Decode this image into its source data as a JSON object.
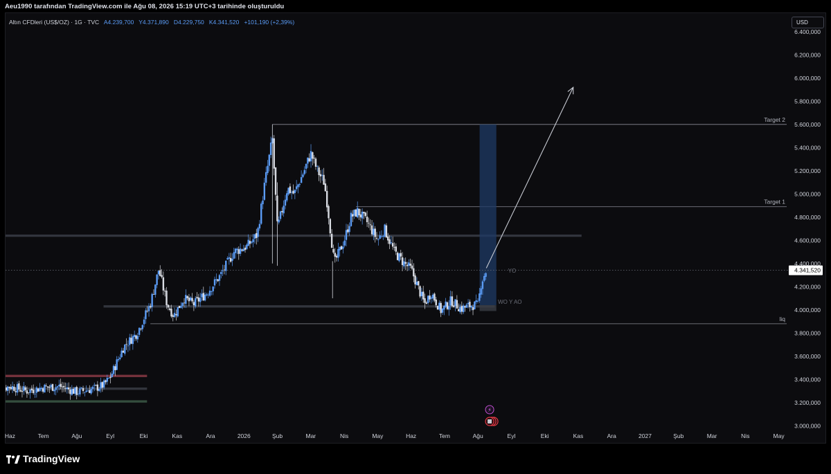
{
  "header": {
    "text": "Aeu1990 tarafından TradingView.com ile Ağu 08, 2026 15:19 UTC+3 tarihinde oluşturuldu"
  },
  "legend": {
    "symbol": "Altın CFDleri (US$/OZ) · 1G · TVC",
    "open": "A4.239,700",
    "high": "Y4.371,890",
    "low": "D4.229,750",
    "close": "K4.341,520",
    "change": "+101,190 (+2,39%)"
  },
  "currency_button": "USD",
  "footer": {
    "brand": "TradingView"
  },
  "colors": {
    "background": "#0c0c0f",
    "candle": "#5b9cf6",
    "text": "#d1d4dc",
    "price_label": "#ffffff"
  },
  "chart_data": {
    "type": "candlestick",
    "title": "",
    "ylim": [
      2960000,
      6560000
    ],
    "y_ticks": [
      {
        "value": 3000000,
        "label": "3.000,000"
      },
      {
        "value": 3200000,
        "label": "3.200,000"
      },
      {
        "value": 3400000,
        "label": "3.400,000"
      },
      {
        "value": 3600000,
        "label": "3.600,000"
      },
      {
        "value": 3800000,
        "label": "3.800,000"
      },
      {
        "value": 4000000,
        "label": "4.000,000"
      },
      {
        "value": 4200000,
        "label": "4.200,000"
      },
      {
        "value": 4400000,
        "label": "4.400,000"
      },
      {
        "value": 4600000,
        "label": "4.600,000"
      },
      {
        "value": 4800000,
        "label": "4.800,000"
      },
      {
        "value": 5000000,
        "label": "5.000,000"
      },
      {
        "value": 5200000,
        "label": "5.200,000"
      },
      {
        "value": 5400000,
        "label": "5.400,000"
      },
      {
        "value": 5600000,
        "label": "5.600,000"
      },
      {
        "value": 5800000,
        "label": "5.800,000"
      },
      {
        "value": 6000000,
        "label": "6.000,000"
      },
      {
        "value": 6200000,
        "label": "6.200,000"
      },
      {
        "value": 6400000,
        "label": "6.400,000"
      }
    ],
    "x_ticks": [
      {
        "t": 0.5,
        "label": "Haz"
      },
      {
        "t": 1.5,
        "label": "Tem"
      },
      {
        "t": 2.5,
        "label": "Ağu"
      },
      {
        "t": 3.5,
        "label": "Eyl"
      },
      {
        "t": 4.5,
        "label": "Eki"
      },
      {
        "t": 5.5,
        "label": "Kas"
      },
      {
        "t": 6.5,
        "label": "Ara"
      },
      {
        "t": 7.5,
        "label": "2026"
      },
      {
        "t": 8.5,
        "label": "Şub"
      },
      {
        "t": 9.5,
        "label": "Mar"
      },
      {
        "t": 10.5,
        "label": "Nis"
      },
      {
        "t": 11.5,
        "label": "May"
      },
      {
        "t": 12.5,
        "label": "Haz"
      },
      {
        "t": 13.5,
        "label": "Tem"
      },
      {
        "t": 14.5,
        "label": "Ağu"
      },
      {
        "t": 15.5,
        "label": "Eyl"
      },
      {
        "t": 16.5,
        "label": "Eki"
      },
      {
        "t": 17.5,
        "label": "Kas"
      },
      {
        "t": 18.5,
        "label": "Ara"
      },
      {
        "t": 19.5,
        "label": "2027"
      },
      {
        "t": 20.5,
        "label": "Şub"
      },
      {
        "t": 21.5,
        "label": "Mar"
      },
      {
        "t": 22.5,
        "label": "Nis"
      },
      {
        "t": 23.5,
        "label": "May"
      }
    ],
    "x_range": [
      0.45,
      23.55
    ],
    "path_points": [
      [
        0.0,
        3300000
      ],
      [
        0.5,
        3340000
      ],
      [
        1.0,
        3300000
      ],
      [
        1.5,
        3330000
      ],
      [
        2.0,
        3340000
      ],
      [
        2.5,
        3290000
      ],
      [
        3.0,
        3320000
      ],
      [
        3.3,
        3350000
      ],
      [
        3.5,
        3420000
      ],
      [
        3.9,
        3680000
      ],
      [
        4.3,
        3800000
      ],
      [
        4.7,
        4050000
      ],
      [
        4.95,
        4350000
      ],
      [
        5.2,
        4050000
      ],
      [
        5.4,
        3950000
      ],
      [
        5.7,
        4100000
      ],
      [
        6.0,
        4050000
      ],
      [
        6.4,
        4150000
      ],
      [
        6.8,
        4300000
      ],
      [
        7.2,
        4500000
      ],
      [
        7.6,
        4550000
      ],
      [
        7.9,
        4650000
      ],
      [
        8.1,
        5050000
      ],
      [
        8.35,
        5480000
      ],
      [
        8.5,
        4700000
      ],
      [
        8.8,
        5050000
      ],
      [
        9.0,
        5000000
      ],
      [
        9.3,
        5200000
      ],
      [
        9.5,
        5350000
      ],
      [
        9.7,
        5200000
      ],
      [
        9.9,
        5100000
      ],
      [
        10.0,
        4900000
      ],
      [
        10.2,
        4400000
      ],
      [
        10.5,
        4600000
      ],
      [
        10.7,
        4800000
      ],
      [
        10.9,
        4850000
      ],
      [
        11.2,
        4750000
      ],
      [
        11.5,
        4600000
      ],
      [
        11.7,
        4700000
      ],
      [
        12.0,
        4500000
      ],
      [
        12.3,
        4400000
      ],
      [
        12.5,
        4350000
      ],
      [
        12.7,
        4200000
      ],
      [
        12.9,
        4050000
      ],
      [
        13.1,
        4150000
      ],
      [
        13.4,
        3990000
      ],
      [
        13.7,
        4080000
      ],
      [
        14.0,
        4010000
      ],
      [
        14.3,
        4040000
      ],
      [
        14.5,
        4040000
      ],
      [
        14.6,
        4240000
      ],
      [
        14.75,
        4341520
      ]
    ],
    "candle_seed": 7,
    "levels": [
      {
        "label": "Target 2",
        "value": 5600000,
        "t_start": 8.35
      },
      {
        "label": "Target 1",
        "value": 4890000,
        "t_start": 10.85
      },
      {
        "label": "liq",
        "value": 3880000,
        "t_start": 4.7
      }
    ],
    "zones": [
      {
        "value_low": 4630000,
        "value_high": 4650000,
        "t_start": 0.0,
        "t_end": 17.6,
        "color": "#3a3d45"
      },
      {
        "value_low": 4020000,
        "value_high": 4040000,
        "t_start": 3.3,
        "t_end": 15.0,
        "color": "#3a3d45"
      },
      {
        "value_low": 3420000,
        "value_high": 3440000,
        "t_start": 0.0,
        "t_end": 4.6,
        "color": "#8a3a44"
      },
      {
        "value_low": 3310000,
        "value_high": 3330000,
        "t_start": 0.0,
        "t_end": 4.6,
        "color": "#3a3d45"
      },
      {
        "value_low": 3200000,
        "value_high": 3220000,
        "t_start": 0.0,
        "t_end": 4.6,
        "color": "#3c5a46"
      }
    ],
    "position_box": {
      "t_start": 14.55,
      "t_end": 15.05,
      "entry": 4040000,
      "target": 5600000,
      "stop": 3990000
    },
    "arrow": {
      "from": [
        14.75,
        4360000
      ],
      "to": [
        17.35,
        5920000
      ]
    },
    "annotations": [
      {
        "text": "YO",
        "t": 15.4,
        "value": 4340000
      },
      {
        "text": "WO Y AO",
        "t": 15.1,
        "value": 4070000
      }
    ],
    "dotted_price_line": 4341520,
    "last_price": {
      "value": 4341520,
      "label": "4.341,520"
    }
  }
}
